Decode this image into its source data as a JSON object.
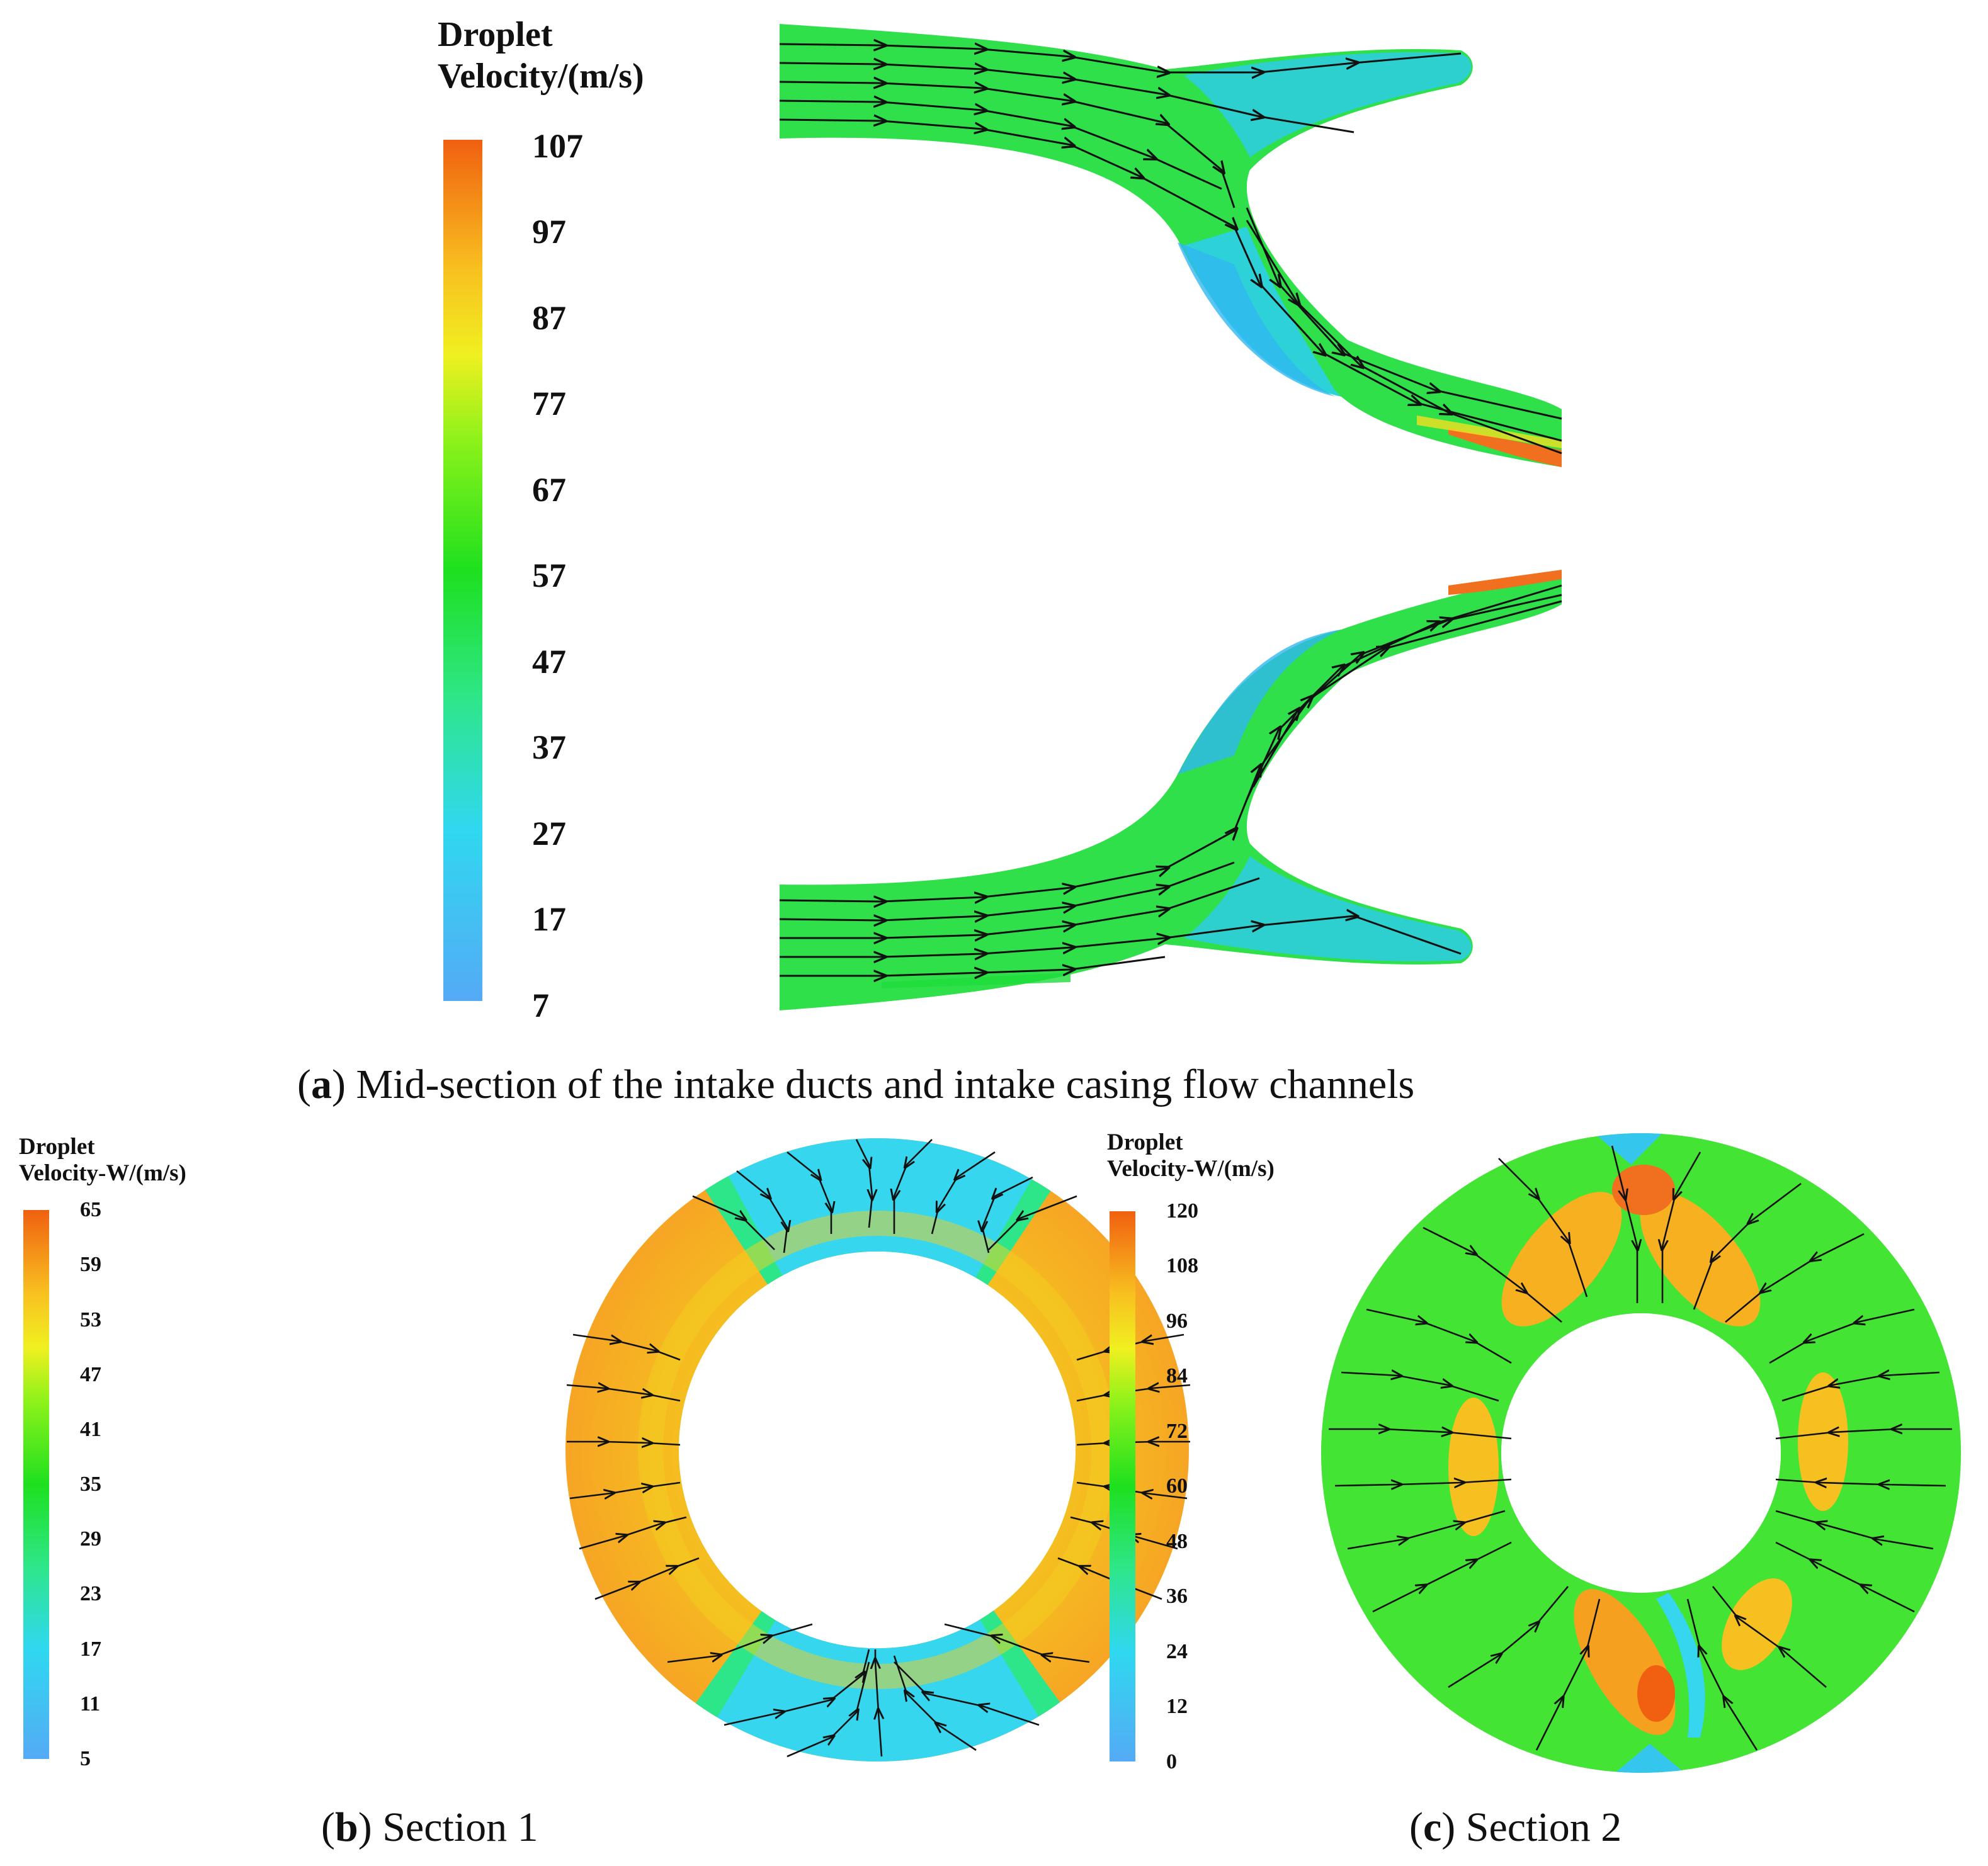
{
  "panel_a": {
    "legend_title_line1": "Droplet",
    "legend_title_line2": "Velocity/(m/s)",
    "ticks": [
      "107",
      "97",
      "87",
      "77",
      "67",
      "57",
      "47",
      "37",
      "27",
      "17",
      "7"
    ],
    "caption_letter": "a",
    "caption_text": "Mid-section of the intake ducts and intake casing flow channels"
  },
  "panel_b": {
    "legend_title_line1": "Droplet",
    "legend_title_line2": "Velocity-W/(m/s)",
    "ticks": [
      "65",
      "59",
      "53",
      "47",
      "41",
      "35",
      "29",
      "23",
      "17",
      "11",
      "5"
    ],
    "caption_letter": "b",
    "caption_text": "Section 1"
  },
  "panel_c": {
    "legend_title_line1": "Droplet",
    "legend_title_line2": "Velocity-W/(m/s)",
    "ticks": [
      "120",
      "108",
      "96",
      "84",
      "72",
      "60",
      "48",
      "36",
      "24",
      "12",
      "0"
    ],
    "caption_letter": "c",
    "caption_text": "Section 2"
  },
  "colormap": [
    "#55aaf5",
    "#2fd0f0",
    "#2ee68a",
    "#1ee01e",
    "#8cf21a",
    "#f0f020",
    "#f8c020",
    "#f59020",
    "#f06010"
  ]
}
